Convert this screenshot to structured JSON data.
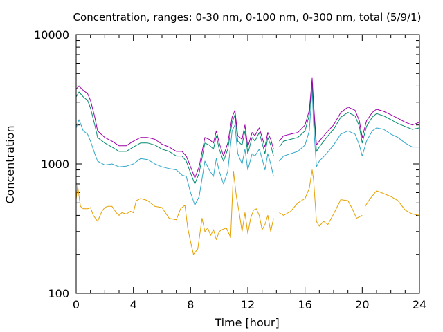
{
  "chart_data": {
    "type": "line",
    "title": "Concentration, ranges: 0-30 nm, 0-100 nm, 0-300 nm, total (5/9/1)",
    "xlabel": "Time [hour]",
    "ylabel": "Concentration",
    "xlim": [
      0,
      24
    ],
    "ylim": [
      100,
      10000
    ],
    "yscale": "log",
    "grid": false,
    "x_ticks": [
      "0",
      "4",
      "8",
      "12",
      "16",
      "20",
      "24"
    ],
    "y_ticks": [
      "100",
      "1000",
      "10000"
    ],
    "colors": [
      "#e6a000",
      "#30a8c8",
      "#008a6e",
      "#9c00a8"
    ],
    "series": [
      {
        "x": [
          0,
          0.1,
          0.3,
          0.5,
          0.8,
          1.0,
          1.2,
          1.5,
          1.8,
          2.0,
          2.2,
          2.5,
          2.8,
          3.0,
          3.2,
          3.5,
          3.8,
          4.0,
          4.2,
          4.5,
          4.8,
          5.0,
          5.5,
          6.0,
          6.5,
          7.0,
          7.3,
          7.6,
          7.8,
          8.0,
          8.2,
          8.5,
          8.8,
          9.0,
          9.2,
          9.4,
          9.6,
          9.8,
          10.0,
          10.2,
          10.5,
          10.8,
          11.0,
          11.2,
          11.4,
          11.6,
          11.8,
          12.0,
          12.2,
          12.4,
          12.6,
          12.8,
          13.0,
          13.2,
          13.4,
          13.6,
          13.8,
          null,
          14.2,
          14.5,
          15.0,
          15.5,
          16.0,
          16.3,
          16.5,
          16.6,
          16.8,
          17.0,
          17.3,
          17.6,
          18.0,
          18.5,
          19.0,
          19.3,
          19.6,
          19.8,
          20.0,
          null,
          20.2,
          20.5,
          21.0,
          21.5,
          22.0,
          22.5,
          23.0,
          23.5,
          24.0
        ],
        "y": [
          530,
          680,
          470,
          450,
          450,
          460,
          400,
          360,
          430,
          460,
          470,
          470,
          420,
          400,
          420,
          410,
          430,
          420,
          520,
          540,
          530,
          520,
          470,
          460,
          380,
          370,
          450,
          480,
          320,
          250,
          200,
          220,
          380,
          300,
          320,
          280,
          310,
          260,
          300,
          310,
          320,
          270,
          880,
          560,
          420,
          300,
          420,
          290,
          380,
          440,
          450,
          400,
          310,
          340,
          400,
          300,
          380,
          null,
          420,
          400,
          430,
          500,
          540,
          650,
          900,
          750,
          360,
          330,
          360,
          340,
          410,
          530,
          520,
          450,
          380,
          390,
          400,
          null,
          470,
          530,
          620,
          590,
          560,
          520,
          440,
          410,
          400
        ]
      },
      {
        "x": [
          0,
          0.2,
          0.5,
          0.8,
          1.0,
          1.3,
          1.5,
          2.0,
          2.5,
          3.0,
          3.5,
          4.0,
          4.5,
          5.0,
          5.5,
          6.0,
          6.5,
          7.0,
          7.4,
          7.7,
          8.0,
          8.3,
          8.6,
          9.0,
          9.3,
          9.6,
          9.8,
          10.0,
          10.3,
          10.6,
          10.9,
          11.1,
          11.3,
          11.6,
          11.8,
          12.0,
          12.3,
          12.5,
          12.8,
          13.0,
          13.2,
          13.4,
          13.6,
          13.8,
          null,
          14.2,
          14.5,
          15.0,
          15.5,
          16.0,
          16.3,
          16.5,
          16.6,
          16.8,
          17.0,
          17.5,
          18.0,
          18.5,
          19.0,
          19.5,
          19.8,
          20.0,
          20.3,
          20.7,
          21.0,
          21.5,
          22.0,
          22.5,
          23.0,
          23.5,
          24.0
        ],
        "y": [
          1900,
          2200,
          1800,
          1700,
          1500,
          1200,
          1050,
          980,
          1000,
          950,
          960,
          1000,
          1100,
          1080,
          1000,
          950,
          920,
          900,
          820,
          800,
          600,
          480,
          560,
          1050,
          900,
          800,
          1100,
          880,
          700,
          880,
          1800,
          2000,
          1200,
          1000,
          1300,
          900,
          1200,
          1150,
          1300,
          1100,
          900,
          1200,
          1000,
          800,
          null,
          1050,
          1150,
          1200,
          1250,
          1400,
          1800,
          3800,
          2000,
          950,
          1050,
          1200,
          1400,
          1700,
          1800,
          1700,
          1400,
          1150,
          1500,
          1800,
          1900,
          1850,
          1700,
          1600,
          1450,
          1350,
          1350
        ]
      },
      {
        "x": [
          0,
          0.2,
          0.5,
          0.8,
          1.0,
          1.3,
          1.5,
          2.0,
          2.5,
          3.0,
          3.5,
          4.0,
          4.5,
          5.0,
          5.5,
          6.0,
          6.5,
          7.0,
          7.4,
          7.7,
          8.0,
          8.3,
          8.6,
          9.0,
          9.3,
          9.6,
          9.8,
          10.0,
          10.3,
          10.6,
          10.9,
          11.1,
          11.3,
          11.6,
          11.8,
          12.0,
          12.3,
          12.5,
          12.8,
          13.0,
          13.2,
          13.4,
          13.6,
          13.8,
          null,
          14.2,
          14.5,
          15.0,
          15.5,
          16.0,
          16.3,
          16.5,
          16.6,
          16.8,
          17.0,
          17.5,
          18.0,
          18.5,
          19.0,
          19.5,
          19.8,
          20.0,
          20.3,
          20.7,
          21.0,
          21.5,
          22.0,
          22.5,
          23.0,
          23.5,
          24.0
        ],
        "y": [
          3300,
          3600,
          3300,
          3100,
          2700,
          2000,
          1600,
          1450,
          1350,
          1250,
          1250,
          1350,
          1450,
          1450,
          1400,
          1300,
          1250,
          1150,
          1150,
          1050,
          850,
          700,
          850,
          1450,
          1400,
          1300,
          1650,
          1300,
          1050,
          1300,
          2100,
          2400,
          1500,
          1400,
          1800,
          1200,
          1600,
          1500,
          1750,
          1450,
          1200,
          1600,
          1400,
          1150,
          null,
          1350,
          1500,
          1550,
          1600,
          1800,
          2400,
          4200,
          2600,
          1250,
          1350,
          1600,
          1850,
          2300,
          2500,
          2350,
          1950,
          1450,
          1950,
          2300,
          2450,
          2350,
          2200,
          2050,
          1950,
          1850,
          1900
        ]
      },
      {
        "x": [
          0,
          0.2,
          0.5,
          0.8,
          1.0,
          1.3,
          1.5,
          2.0,
          2.5,
          3.0,
          3.5,
          4.0,
          4.5,
          5.0,
          5.5,
          6.0,
          6.5,
          7.0,
          7.4,
          7.7,
          8.0,
          8.3,
          8.6,
          9.0,
          9.3,
          9.6,
          9.8,
          10.0,
          10.3,
          10.6,
          10.9,
          11.1,
          11.3,
          11.6,
          11.8,
          12.0,
          12.3,
          12.5,
          12.8,
          13.0,
          13.2,
          13.4,
          13.6,
          13.8,
          null,
          14.2,
          14.5,
          15.0,
          15.5,
          16.0,
          16.3,
          16.5,
          16.6,
          16.8,
          17.0,
          17.5,
          18.0,
          18.5,
          19.0,
          19.5,
          19.8,
          20.0,
          20.3,
          20.7,
          21.0,
          21.5,
          22.0,
          22.5,
          23.0,
          23.5,
          24.0
        ],
        "y": [
          3800,
          4000,
          3700,
          3500,
          3100,
          2300,
          1800,
          1600,
          1500,
          1380,
          1380,
          1500,
          1600,
          1600,
          1550,
          1420,
          1350,
          1250,
          1250,
          1150,
          950,
          780,
          950,
          1600,
          1550,
          1450,
          1800,
          1450,
          1150,
          1450,
          2300,
          2600,
          1650,
          1550,
          2000,
          1350,
          1750,
          1650,
          1900,
          1600,
          1350,
          1750,
          1550,
          1300,
          null,
          1500,
          1650,
          1700,
          1750,
          2000,
          2600,
          4600,
          2900,
          1400,
          1500,
          1750,
          2000,
          2500,
          2750,
          2600,
          2150,
          1600,
          2150,
          2500,
          2650,
          2550,
          2400,
          2250,
          2100,
          2000,
          2100
        ]
      }
    ]
  }
}
